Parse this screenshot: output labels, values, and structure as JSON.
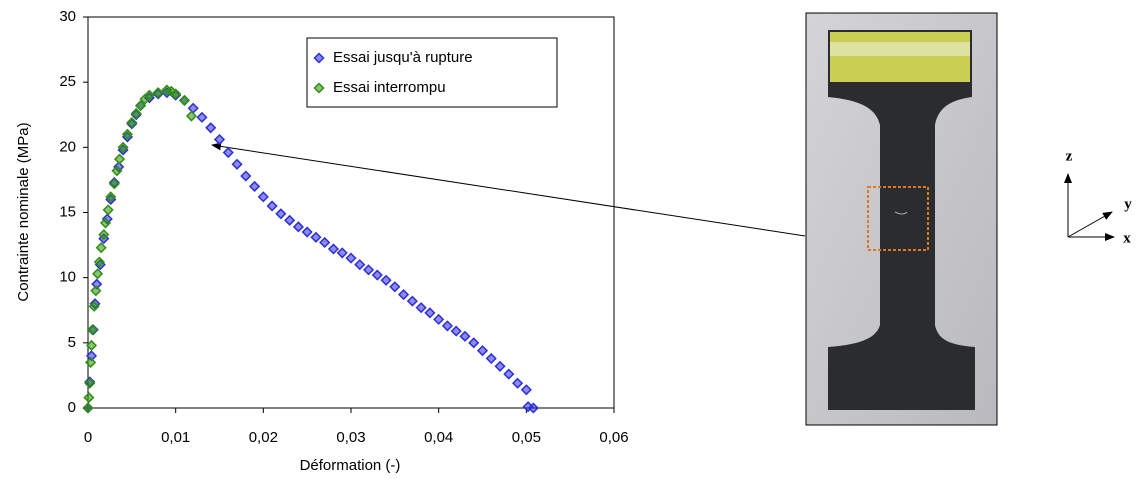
{
  "chart_data": {
    "type": "scatter",
    "x_label": "Déformation (-)",
    "y_label": "Contrainte nominale (MPa)",
    "xlim": [
      0,
      0.06
    ],
    "ylim": [
      0,
      30
    ],
    "xticks": [
      0,
      {
        "value": 0.01,
        "label": "0,01"
      },
      {
        "value": 0.02,
        "label": "0,02"
      },
      {
        "value": 0.03,
        "label": "0,03"
      },
      {
        "value": 0.04,
        "label": "0,04"
      },
      {
        "value": 0.05,
        "label": "0,05"
      },
      {
        "value": 0.06,
        "label": "0,06"
      }
    ],
    "yticks": [
      0,
      5,
      10,
      15,
      20,
      25,
      30
    ],
    "grid": false,
    "legend": "upper right",
    "series": [
      {
        "name": "Essai jusqu'à rupture",
        "color": "#2d2dd6",
        "x": [
          0,
          0.0002,
          0.0004,
          0.0006,
          0.0008,
          0.001,
          0.0014,
          0.0018,
          0.0022,
          0.0026,
          0.003,
          0.0035,
          0.004,
          0.0045,
          0.005,
          0.0055,
          0.006,
          0.007,
          0.008,
          0.009,
          0.01,
          0.011,
          0.012,
          0.013,
          0.014,
          0.015,
          0.016,
          0.017,
          0.018,
          0.019,
          0.02,
          0.021,
          0.022,
          0.023,
          0.024,
          0.025,
          0.026,
          0.027,
          0.028,
          0.029,
          0.03,
          0.031,
          0.032,
          0.033,
          0.034,
          0.035,
          0.036,
          0.037,
          0.038,
          0.039,
          0.04,
          0.041,
          0.042,
          0.043,
          0.044,
          0.045,
          0.046,
          0.047,
          0.048,
          0.049,
          0.05,
          0.0502,
          0.0508
        ],
        "values": [
          0,
          2,
          4,
          6,
          8,
          9.5,
          11,
          13,
          14.5,
          16,
          17.3,
          18.5,
          19.8,
          20.8,
          21.8,
          22.5,
          23.2,
          23.8,
          24.1,
          24.2,
          24.0,
          23.6,
          23.0,
          22.3,
          21.5,
          20.6,
          19.6,
          18.7,
          17.8,
          17.0,
          16.2,
          15.5,
          14.9,
          14.4,
          13.9,
          13.5,
          13.1,
          12.7,
          12.2,
          11.9,
          11.5,
          11.0,
          10.6,
          10.2,
          9.8,
          9.3,
          8.7,
          8.2,
          7.7,
          7.3,
          6.8,
          6.3,
          5.9,
          5.5,
          5.0,
          4.4,
          3.8,
          3.2,
          2.6,
          1.9,
          1.4,
          0.1,
          0
        ]
      },
      {
        "name": "Essai interrompu",
        "color": "#2f8f10",
        "x": [
          0,
          0.0001,
          0.0002,
          0.0003,
          0.0004,
          0.0005,
          0.0007,
          0.0009,
          0.0011,
          0.0013,
          0.0015,
          0.0018,
          0.002,
          0.0023,
          0.0026,
          0.003,
          0.0033,
          0.0036,
          0.004,
          0.0045,
          0.005,
          0.0055,
          0.006,
          0.0065,
          0.007,
          0.008,
          0.009,
          0.0095,
          0.01,
          0.011,
          0.0118
        ],
        "values": [
          0,
          0.8,
          1.9,
          3.5,
          4.8,
          6,
          7.8,
          9,
          10.3,
          11.2,
          12.3,
          13.3,
          14.2,
          15.2,
          16.2,
          17.2,
          18.2,
          19.1,
          20,
          21,
          21.9,
          22.6,
          23.2,
          23.7,
          24,
          24.2,
          24.4,
          24.3,
          24.1,
          23.6,
          22.4
        ]
      }
    ]
  },
  "axes_diagram": {
    "z": "z",
    "y": "y",
    "x": "x"
  }
}
